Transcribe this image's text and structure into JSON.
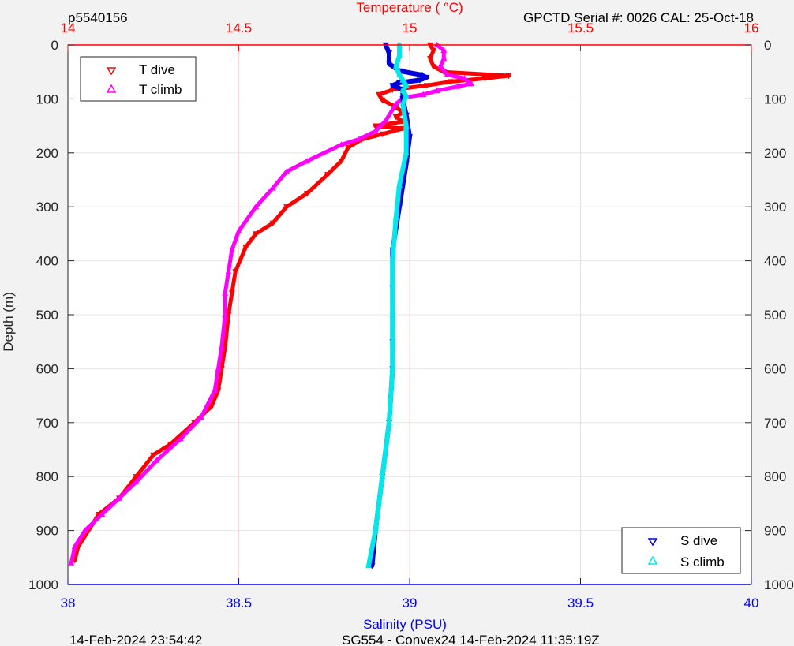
{
  "header": {
    "left": "p5540156",
    "right": "GPCTD Serial #: 0026 CAL: 25-Oct-18"
  },
  "footer": {
    "left": "14-Feb-2024 23:54:42",
    "center": "SG554 - Convex24 14-Feb-2024 11:35:19Z"
  },
  "colors": {
    "t_dive": "#ff0000",
    "t_climb": "#ff00ff",
    "s_dive": "#0000dd",
    "s_climb": "#00e8e8",
    "temp_axis": "#ff0000",
    "sal_axis": "#0000ff",
    "grid": "#e6e6e6"
  },
  "chart_data": {
    "type": "line",
    "y_axis": {
      "label": "Depth (m)",
      "range": [
        0,
        1000
      ],
      "reversed": true,
      "ticks": [
        0,
        100,
        200,
        300,
        400,
        500,
        600,
        700,
        800,
        900,
        1000
      ]
    },
    "x_axis_top": {
      "label": "Temperature (   °C)",
      "range": [
        14,
        16
      ],
      "ticks": [
        "14",
        "14.5",
        "15",
        "15.5",
        "16"
      ]
    },
    "x_axis_bottom": {
      "label": "Salinity (PSU)",
      "range": [
        38,
        40
      ],
      "ticks": [
        "38",
        "38.5",
        "39",
        "39.5",
        "40"
      ]
    },
    "grid": true,
    "legend_temperature": {
      "placement": "top-left",
      "entries": [
        "T dive",
        "T climb"
      ]
    },
    "legend_salinity": {
      "placement": "bottom-right",
      "entries": [
        "S dive",
        "S climb"
      ]
    },
    "series": [
      {
        "name": "T dive",
        "axis": "temperature",
        "marker": "triangle-down",
        "points": [
          [
            15.06,
            0
          ],
          [
            15.07,
            10
          ],
          [
            15.06,
            25
          ],
          [
            15.07,
            40
          ],
          [
            15.1,
            50
          ],
          [
            15.29,
            57
          ],
          [
            15.22,
            62
          ],
          [
            15.12,
            68
          ],
          [
            15.05,
            75
          ],
          [
            14.95,
            83
          ],
          [
            14.91,
            92
          ],
          [
            14.92,
            102
          ],
          [
            14.96,
            115
          ],
          [
            14.98,
            125
          ],
          [
            14.96,
            133
          ],
          [
            14.98,
            142
          ],
          [
            14.9,
            150
          ],
          [
            14.98,
            155
          ],
          [
            14.92,
            165
          ],
          [
            14.86,
            175
          ],
          [
            14.82,
            190
          ],
          [
            14.8,
            215
          ],
          [
            14.76,
            240
          ],
          [
            14.7,
            275
          ],
          [
            14.64,
            300
          ],
          [
            14.6,
            330
          ],
          [
            14.55,
            350
          ],
          [
            14.52,
            375
          ],
          [
            14.49,
            420
          ],
          [
            14.48,
            460
          ],
          [
            14.47,
            500
          ],
          [
            14.46,
            560
          ],
          [
            14.45,
            600
          ],
          [
            14.44,
            640
          ],
          [
            14.42,
            670
          ],
          [
            14.37,
            700
          ],
          [
            14.3,
            740
          ],
          [
            14.25,
            760
          ],
          [
            14.2,
            800
          ],
          [
            14.15,
            840
          ],
          [
            14.09,
            870
          ],
          [
            14.06,
            900
          ],
          [
            14.03,
            930
          ],
          [
            14.02,
            955
          ]
        ]
      },
      {
        "name": "T climb",
        "axis": "temperature",
        "marker": "triangle-up",
        "points": [
          [
            15.08,
            0
          ],
          [
            15.1,
            10
          ],
          [
            15.1,
            25
          ],
          [
            15.09,
            40
          ],
          [
            15.11,
            55
          ],
          [
            15.16,
            62
          ],
          [
            15.18,
            72
          ],
          [
            15.14,
            77
          ],
          [
            15.08,
            85
          ],
          [
            15.04,
            92
          ],
          [
            14.98,
            98
          ],
          [
            14.96,
            110
          ],
          [
            14.93,
            140
          ],
          [
            14.9,
            160
          ],
          [
            14.85,
            175
          ],
          [
            14.8,
            185
          ],
          [
            14.7,
            215
          ],
          [
            14.64,
            235
          ],
          [
            14.6,
            265
          ],
          [
            14.55,
            300
          ],
          [
            14.5,
            345
          ],
          [
            14.48,
            380
          ],
          [
            14.47,
            420
          ],
          [
            14.46,
            460
          ],
          [
            14.46,
            500
          ],
          [
            14.45,
            560
          ],
          [
            14.44,
            600
          ],
          [
            14.43,
            640
          ],
          [
            14.39,
            690
          ],
          [
            14.33,
            730
          ],
          [
            14.26,
            770
          ],
          [
            14.2,
            810
          ],
          [
            14.15,
            840
          ],
          [
            14.1,
            870
          ],
          [
            14.05,
            900
          ],
          [
            14.02,
            930
          ],
          [
            14.01,
            960
          ]
        ]
      },
      {
        "name": "S dive",
        "axis": "salinity",
        "marker": "triangle-down",
        "points": [
          [
            38.93,
            0
          ],
          [
            38.94,
            15
          ],
          [
            38.94,
            35
          ],
          [
            38.97,
            48
          ],
          [
            39.03,
            55
          ],
          [
            39.05,
            60
          ],
          [
            39.03,
            65
          ],
          [
            38.97,
            70
          ],
          [
            38.95,
            75
          ],
          [
            38.98,
            83
          ],
          [
            38.98,
            100
          ],
          [
            38.99,
            130
          ],
          [
            39.0,
            170
          ],
          [
            38.99,
            220
          ],
          [
            38.97,
            300
          ],
          [
            38.96,
            340
          ],
          [
            38.95,
            380
          ],
          [
            38.95,
            450
          ],
          [
            38.95,
            550
          ],
          [
            38.95,
            600
          ],
          [
            38.94,
            700
          ],
          [
            38.92,
            800
          ],
          [
            38.9,
            900
          ],
          [
            38.89,
            965
          ]
        ]
      },
      {
        "name": "S climb",
        "axis": "salinity",
        "marker": "triangle-up",
        "points": [
          [
            38.97,
            0
          ],
          [
            38.97,
            20
          ],
          [
            38.96,
            40
          ],
          [
            38.97,
            55
          ],
          [
            38.98,
            65
          ],
          [
            38.99,
            75
          ],
          [
            38.98,
            85
          ],
          [
            38.99,
            95
          ],
          [
            38.98,
            110
          ],
          [
            38.99,
            150
          ],
          [
            38.99,
            200
          ],
          [
            38.97,
            260
          ],
          [
            38.96,
            320
          ],
          [
            38.95,
            400
          ],
          [
            38.95,
            500
          ],
          [
            38.95,
            550
          ],
          [
            38.95,
            600
          ],
          [
            38.94,
            700
          ],
          [
            38.92,
            800
          ],
          [
            38.9,
            900
          ],
          [
            38.88,
            965
          ]
        ]
      }
    ]
  }
}
